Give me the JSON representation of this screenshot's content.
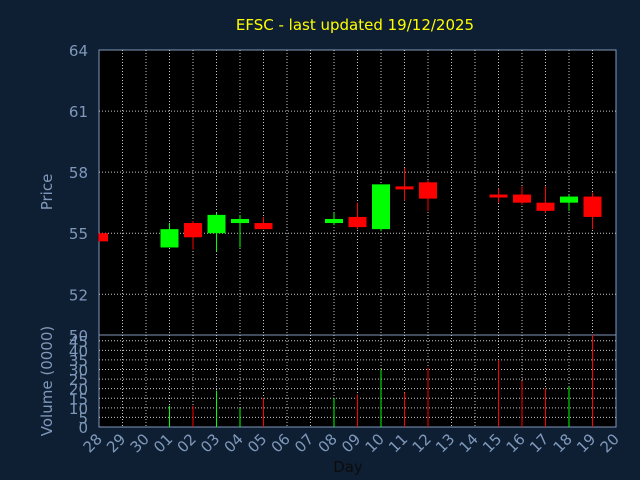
{
  "chart_data": {
    "type": "candlestick",
    "title": "EFSC - last updated 19/12/2025",
    "xlabel": "Day",
    "price_panel": {
      "ylabel": "Price",
      "ylim": [
        50,
        64
      ],
      "yticks": [
        "64",
        "61",
        "58",
        "55",
        "52",
        "50"
      ]
    },
    "volume_panel": {
      "ylabel": "Volume (0000)",
      "ylim": [
        0,
        48
      ],
      "yticks": [
        "45",
        "40",
        "35",
        "30",
        "25",
        "20",
        "15",
        "10",
        "5",
        "0"
      ]
    },
    "x_ticks": [
      "28",
      "29",
      "30",
      "01",
      "02",
      "03",
      "04",
      "05",
      "06",
      "07",
      "08",
      "09",
      "10",
      "11",
      "12",
      "13",
      "14",
      "15",
      "16",
      "17",
      "18",
      "19",
      "20"
    ],
    "candles": [
      {
        "day": "28",
        "open": 55.0,
        "close": 54.6,
        "high": 55.0,
        "low": 54.6,
        "volume": 0
      },
      {
        "day": "01",
        "open": 54.3,
        "close": 55.2,
        "high": 55.5,
        "low": 54.3,
        "volume": 11
      },
      {
        "day": "02",
        "open": 55.5,
        "close": 54.8,
        "high": 55.6,
        "low": 54.2,
        "volume": 11
      },
      {
        "day": "03",
        "open": 55.0,
        "close": 55.9,
        "high": 56.0,
        "low": 54.1,
        "volume": 19
      },
      {
        "day": "04",
        "open": 55.5,
        "close": 55.7,
        "high": 55.9,
        "low": 54.3,
        "volume": 10
      },
      {
        "day": "05",
        "open": 55.5,
        "close": 55.2,
        "high": 55.8,
        "low": 55.2,
        "volume": 15
      },
      {
        "day": "08",
        "open": 55.5,
        "close": 55.7,
        "high": 56.0,
        "low": 55.4,
        "volume": 15
      },
      {
        "day": "09",
        "open": 55.8,
        "close": 55.3,
        "high": 56.5,
        "low": 55.2,
        "volume": 17
      },
      {
        "day": "10",
        "open": 55.2,
        "close": 57.4,
        "high": 57.4,
        "low": 55.1,
        "volume": 30
      },
      {
        "day": "11",
        "open": 57.3,
        "close": 57.2,
        "high": 58.2,
        "low": 56.6,
        "volume": 18
      },
      {
        "day": "12",
        "open": 57.5,
        "close": 56.7,
        "high": 57.6,
        "low": 56.1,
        "volume": 31
      },
      {
        "day": "15",
        "open": 56.9,
        "close": 56.8,
        "high": 57.2,
        "low": 56.5,
        "volume": 35
      },
      {
        "day": "16",
        "open": 56.9,
        "close": 56.5,
        "high": 57.3,
        "low": 56.4,
        "volume": 24
      },
      {
        "day": "17",
        "open": 56.5,
        "close": 56.1,
        "high": 57.3,
        "low": 56.0,
        "volume": 20
      },
      {
        "day": "18",
        "open": 56.5,
        "close": 56.8,
        "high": 56.9,
        "low": 56.1,
        "volume": 21
      },
      {
        "day": "19",
        "open": 56.8,
        "close": 55.8,
        "high": 57.0,
        "low": 55.2,
        "volume": 48
      }
    ],
    "colors": {
      "background": "#0f1f33",
      "plot": "#000000",
      "grid": "#c8c8c8",
      "up": "#00ff00",
      "down": "#ff0000",
      "title": "#ffff00",
      "axis_text": "#7f99bb"
    }
  }
}
